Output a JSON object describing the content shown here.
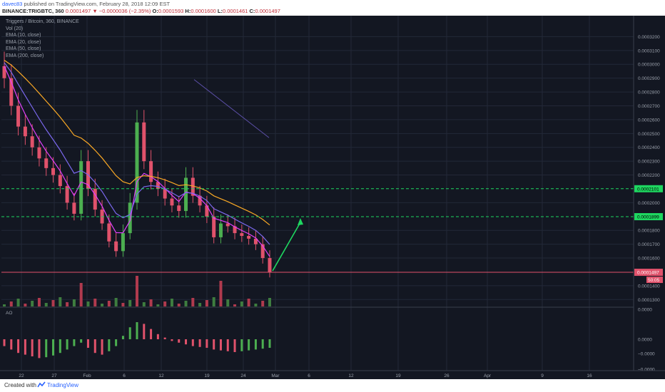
{
  "header": {
    "user": "davec83",
    "published": "published on TradingView.com, February 28, 2018 12:09 EST",
    "symbol": "BINANCE:TRIGBTC, 360",
    "last": "0.0001497",
    "arrow": "▼",
    "change": "−0.0000036 (−2.35%)",
    "o_label": "O:",
    "o_value": "0.0001593",
    "h_label": "H:",
    "h_value": "0.0001600",
    "l_label": "L:",
    "l_value": "0.0001461",
    "c_label": "C:",
    "c_value": "0.0001497"
  },
  "legend": {
    "title": "Triggers / Bitcoin, 360, BINANCE",
    "vol": "Vol (20)",
    "ema10": "EMA (10, close)",
    "ema20": "EMA (20, close)",
    "ema50": "EMA (50, close)",
    "ema200": "EMA (200, close)"
  },
  "indicator_label": "AO",
  "footer": {
    "created": "Created with",
    "brand": "TradingView"
  },
  "colors": {
    "background": "#131722",
    "grid": "#232838",
    "up": "#4caf50",
    "down": "#e0526b",
    "ema10": "#e040fb",
    "ema20": "#7b68ee",
    "ema50": "#f9a825",
    "level": "#1ed760",
    "price_line": "#e0526b",
    "arrow": "#1ed760",
    "trendline": "#5c4fa8",
    "vol_ma": "#26c6da"
  },
  "chart_data": {
    "type": "line",
    "title": "Triggers / Bitcoin, 360, BINANCE",
    "ylim": [
      0.000125,
      0.00033
    ],
    "y_ticks": [
      "0.0001300",
      "0.0001400",
      "0.0001600",
      "0.0001700",
      "0.0001800",
      "0.0002000",
      "0.0002200",
      "0.0002300",
      "0.0002400",
      "0.0002500",
      "0.0002600",
      "0.0002700",
      "0.0002800",
      "0.0002900",
      "0.0003000",
      "0.0003100",
      "0.0003200"
    ],
    "x_ticks": [
      "22",
      "27",
      "Feb",
      "6",
      "12",
      "19",
      "24",
      "Mar",
      "6",
      "12",
      "19",
      "26",
      "Apr",
      "9",
      "16"
    ],
    "price_path": [
      [
        "Jan 21",
        0.00029
      ],
      [
        "Jan 22",
        0.00027
      ],
      [
        "Jan 23",
        0.000255
      ],
      [
        "Jan 24",
        0.000248
      ],
      [
        "Jan 25",
        0.00024
      ],
      [
        "Jan 26",
        0.000232
      ],
      [
        "Jan 27",
        0.000225
      ],
      [
        "Jan 28",
        0.00022
      ],
      [
        "Jan 29",
        0.000212
      ],
      [
        "Jan 30",
        0.0002
      ],
      [
        "Jan 31",
        0.000192
      ],
      [
        "Feb 1",
        0.00023
      ],
      [
        "Feb 2",
        0.00021
      ],
      [
        "Feb 3",
        0.000195
      ],
      [
        "Feb 4",
        0.000185
      ],
      [
        "Feb 5",
        0.000172
      ],
      [
        "Feb 6",
        0.000165
      ],
      [
        "Feb 7",
        0.000178
      ],
      [
        "Feb 8",
        0.0002
      ],
      [
        "Feb 9",
        0.000258
      ],
      [
        "Feb 10",
        0.00023
      ],
      [
        "Feb 11",
        0.000215
      ],
      [
        "Feb 12",
        0.00021
      ],
      [
        "Feb 13",
        0.000203
      ],
      [
        "Feb 14",
        0.000198
      ],
      [
        "Feb 15",
        0.000194
      ],
      [
        "Feb 16",
        0.000218
      ],
      [
        "Feb 17",
        0.000205
      ],
      [
        "Feb 18",
        0.000198
      ],
      [
        "Feb 19",
        0.00019
      ],
      [
        "Feb 20",
        0.000175
      ],
      [
        "Feb 21",
        0.000185
      ],
      [
        "Feb 22",
        0.000183
      ],
      [
        "Feb 23",
        0.000178
      ],
      [
        "Feb 24",
        0.000176
      ],
      [
        "Feb 25",
        0.000174
      ],
      [
        "Feb 26",
        0.00017
      ],
      [
        "Feb 27",
        0.00016
      ],
      [
        "Feb 28",
        0.0001497
      ]
    ],
    "horizontal_levels": [
      {
        "label": "0.0002101",
        "value": 0.0002101
      },
      {
        "label": "0.0001899",
        "value": 0.0001899
      }
    ],
    "last_price": {
      "label": "0.0001497",
      "value": 0.0001497
    },
    "countdown": "50:05",
    "ao": {
      "y_ticks": [
        "0.0000",
        "0.0000",
        "−0.0000",
        "−0.0000"
      ],
      "values": [
        -8,
        -12,
        -16,
        -18,
        -20,
        -22,
        -21,
        -19,
        -16,
        -12,
        -8,
        -4,
        -10,
        -16,
        -18,
        -14,
        -8,
        4,
        14,
        20,
        18,
        12,
        6,
        2,
        -2,
        -4,
        -6,
        -8,
        -9,
        -10,
        -12,
        -13,
        -14,
        -15,
        -14,
        -13,
        -12,
        -11,
        -10
      ]
    }
  }
}
